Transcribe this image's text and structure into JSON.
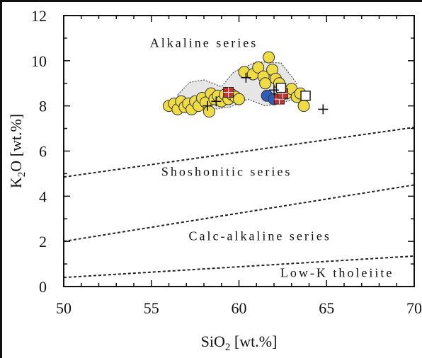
{
  "chart_data": {
    "type": "scatter",
    "xlabel": "SiO2 [wt.%]",
    "xlabel_parts": {
      "main": "SiO",
      "sub": "2",
      "rest": " [wt.%]"
    },
    "ylabel": "K2O [wt.%]",
    "ylabel_parts": {
      "pre": "K",
      "sub": "2",
      "rest": "O [wt.%]"
    },
    "xlim": [
      50,
      70
    ],
    "ylim": [
      0,
      12
    ],
    "x_ticks": [
      50,
      55,
      60,
      65,
      70
    ],
    "y_ticks": [
      0,
      2,
      4,
      6,
      8,
      10,
      12
    ],
    "x_tick_labels": [
      "50",
      "55",
      "60",
      "65",
      "70"
    ],
    "y_tick_labels": [
      "0",
      "2",
      "4",
      "6",
      "8",
      "10",
      "12"
    ],
    "grid": false,
    "boundaries": [
      {
        "x": [
          50,
          70
        ],
        "y": [
          4.85,
          7.05
        ]
      },
      {
        "x": [
          50,
          70
        ],
        "y": [
          2.0,
          4.5
        ]
      },
      {
        "x": [
          50,
          70
        ],
        "y": [
          0.4,
          1.35
        ]
      }
    ],
    "field_labels": [
      {
        "text": "Alkaline series",
        "x": 58.0,
        "y": 10.6
      },
      {
        "text": "Shoshonitic series",
        "x": 59.3,
        "y": 4.9
      },
      {
        "text": "Calc-alkaline series",
        "x": 61.2,
        "y": 2.05
      },
      {
        "text": "Low-K tholeiite",
        "x": 65.6,
        "y": 0.42
      }
    ],
    "shaded_field": [
      [
        56.5,
        8.5
      ],
      [
        57.2,
        9.05
      ],
      [
        58.0,
        9.15
      ],
      [
        59.0,
        8.85
      ],
      [
        59.7,
        9.5
      ],
      [
        61.0,
        9.95
      ],
      [
        62.4,
        9.9
      ],
      [
        63.3,
        9.0
      ],
      [
        63.0,
        8.25
      ],
      [
        61.5,
        8.0
      ],
      [
        60.5,
        8.3
      ],
      [
        59.5,
        7.95
      ],
      [
        58.5,
        7.85
      ],
      [
        57.5,
        8.0
      ],
      [
        56.6,
        8.1
      ]
    ],
    "series": [
      {
        "marker": "circle",
        "color": "#efdc45",
        "points": [
          [
            56.0,
            8.0
          ],
          [
            56.3,
            8.1
          ],
          [
            56.5,
            7.85
          ],
          [
            56.7,
            8.2
          ],
          [
            56.9,
            7.95
          ],
          [
            57.1,
            8.1
          ],
          [
            57.3,
            7.85
          ],
          [
            57.5,
            8.2
          ],
          [
            57.7,
            8.0
          ],
          [
            57.9,
            8.35
          ],
          [
            58.1,
            8.15
          ],
          [
            58.3,
            7.75
          ],
          [
            58.4,
            8.55
          ],
          [
            58.6,
            8.3
          ],
          [
            58.8,
            8.45
          ],
          [
            59.0,
            8.2
          ],
          [
            59.2,
            8.5
          ],
          [
            59.4,
            8.3
          ],
          [
            59.6,
            8.5
          ],
          [
            59.8,
            8.4
          ],
          [
            60.0,
            8.3
          ],
          [
            60.3,
            9.5
          ],
          [
            60.8,
            9.4
          ],
          [
            61.1,
            9.7
          ],
          [
            61.4,
            9.3
          ],
          [
            61.5,
            9.0
          ],
          [
            61.7,
            10.15
          ],
          [
            61.9,
            9.6
          ],
          [
            62.1,
            9.2
          ],
          [
            62.3,
            9.0
          ],
          [
            62.5,
            8.7
          ],
          [
            62.7,
            8.55
          ],
          [
            63.0,
            8.75
          ],
          [
            63.3,
            8.4
          ],
          [
            63.5,
            8.55
          ],
          [
            63.7,
            8.0
          ]
        ]
      },
      {
        "marker": "circle",
        "color": "#2f5db8",
        "points": [
          [
            61.6,
            8.45
          ],
          [
            62.0,
            8.3
          ]
        ]
      },
      {
        "marker": "square-grid",
        "color": "#c8322e",
        "points": [
          [
            59.4,
            8.6
          ],
          [
            62.3,
            8.3
          ],
          [
            62.5,
            8.55
          ]
        ]
      },
      {
        "marker": "square-open",
        "color": "#ffffff",
        "points": [
          [
            62.4,
            8.8
          ],
          [
            63.8,
            8.45
          ]
        ]
      },
      {
        "marker": "plus",
        "color": "#111111",
        "points": [
          [
            60.4,
            9.25
          ],
          [
            58.2,
            8.0
          ],
          [
            58.7,
            8.2
          ],
          [
            62.0,
            8.7
          ],
          [
            64.8,
            7.85
          ]
        ]
      }
    ]
  }
}
